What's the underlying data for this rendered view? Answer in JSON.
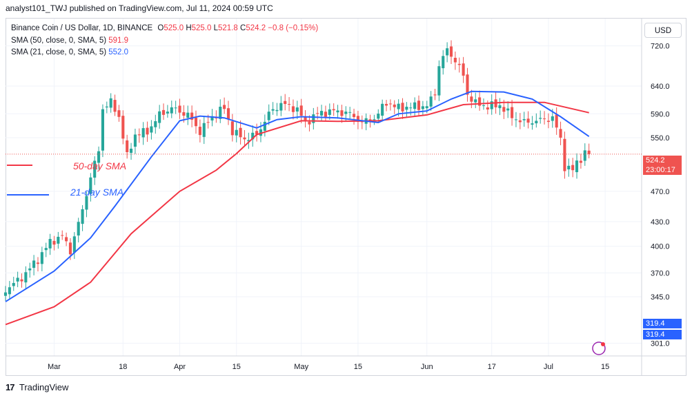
{
  "header": {
    "text": "analyst101_TWJ published on TradingView.com, Jul 11, 2024 00:59 UTC"
  },
  "legend": {
    "symbol": "Binance Coin / US Dollar, 1D, BINANCE",
    "o_label": "O",
    "o_value": "525.0",
    "h_label": "H",
    "h_value": "525.0",
    "l_label": "L",
    "l_value": "521.8",
    "c_label": "C",
    "c_value": "524.2",
    "change": "−0.8 (−0.15%)",
    "sma50_label": "SMA (50, close, 0, SMA, 5)",
    "sma50_value": "591.9",
    "sma21_label": "SMA (21, close, 0, SMA, 5)",
    "sma21_value": "552.0"
  },
  "currency_button": "USD",
  "price_tags": {
    "last_price": "524.2",
    "countdown": "23:00:17",
    "lower_1": "319.4",
    "lower_2": "319.4"
  },
  "annotations": {
    "sma50": "50-day SMA",
    "sma21": "21-day SMA"
  },
  "branding": {
    "logo": "17",
    "name": "TradingView"
  },
  "colors": {
    "up": "#26a69a",
    "down": "#ef5350",
    "sma50": "#f23645",
    "sma21": "#2962ff",
    "grid": "#f0f3fa",
    "last_line": "#ef5350"
  },
  "chart_data": {
    "type": "candlestick",
    "title": "Binance Coin / US Dollar, 1D, BINANCE",
    "y_scale": "log",
    "ylim": [
      290,
      780
    ],
    "y_ticks": [
      301.0,
      345.0,
      370.0,
      400.0,
      430.0,
      470.0,
      550.0,
      590.0,
      640.0,
      720.0
    ],
    "x_range": [
      "2024-02-18",
      "2024-07-24"
    ],
    "x_ticks": [
      {
        "date": "2024-03-01",
        "label": "Mar"
      },
      {
        "date": "2024-03-18",
        "label": "18"
      },
      {
        "date": "2024-04-01",
        "label": "Apr"
      },
      {
        "date": "2024-04-15",
        "label": "15"
      },
      {
        "date": "2024-05-01",
        "label": "May"
      },
      {
        "date": "2024-05-15",
        "label": "15"
      },
      {
        "date": "2024-06-01",
        "label": "Jun"
      },
      {
        "date": "2024-06-17",
        "label": "17"
      },
      {
        "date": "2024-07-01",
        "label": "Jul"
      },
      {
        "date": "2024-07-15",
        "label": "15"
      }
    ],
    "last_price": 524.2,
    "close_anchors": [
      [
        "2024-02-18",
        352
      ],
      [
        "2024-02-22",
        365
      ],
      [
        "2024-02-26",
        385
      ],
      [
        "2024-02-29",
        405
      ],
      [
        "2024-03-03",
        412
      ],
      [
        "2024-03-05",
        395
      ],
      [
        "2024-03-08",
        445
      ],
      [
        "2024-03-10",
        490
      ],
      [
        "2024-03-12",
        530
      ],
      [
        "2024-03-13",
        600
      ],
      [
        "2024-03-15",
        610
      ],
      [
        "2024-03-17",
        585
      ],
      [
        "2024-03-19",
        520
      ],
      [
        "2024-03-21",
        555
      ],
      [
        "2024-03-24",
        560
      ],
      [
        "2024-03-27",
        588
      ],
      [
        "2024-03-30",
        600
      ],
      [
        "2024-04-03",
        588
      ],
      [
        "2024-04-06",
        560
      ],
      [
        "2024-04-09",
        585
      ],
      [
        "2024-04-12",
        600
      ],
      [
        "2024-04-14",
        560
      ],
      [
        "2024-04-17",
        548
      ],
      [
        "2024-04-20",
        555
      ],
      [
        "2024-04-23",
        590
      ],
      [
        "2024-04-26",
        608
      ],
      [
        "2024-04-30",
        598
      ],
      [
        "2024-05-02",
        575
      ],
      [
        "2024-05-05",
        590
      ],
      [
        "2024-05-09",
        595
      ],
      [
        "2024-05-13",
        590
      ],
      [
        "2024-05-16",
        575
      ],
      [
        "2024-05-19",
        582
      ],
      [
        "2024-05-22",
        610
      ],
      [
        "2024-05-25",
        600
      ],
      [
        "2024-05-29",
        603
      ],
      [
        "2024-06-01",
        603
      ],
      [
        "2024-06-03",
        628
      ],
      [
        "2024-06-04",
        680
      ],
      [
        "2024-06-06",
        712
      ],
      [
        "2024-06-08",
        690
      ],
      [
        "2024-06-10",
        660
      ],
      [
        "2024-06-11",
        625
      ],
      [
        "2024-06-13",
        608
      ],
      [
        "2024-06-16",
        603
      ],
      [
        "2024-06-19",
        605
      ],
      [
        "2024-06-22",
        585
      ],
      [
        "2024-06-25",
        575
      ],
      [
        "2024-06-28",
        578
      ],
      [
        "2024-07-02",
        583
      ],
      [
        "2024-07-04",
        548
      ],
      [
        "2024-07-05",
        505
      ],
      [
        "2024-07-07",
        500
      ],
      [
        "2024-07-08",
        512
      ],
      [
        "2024-07-09",
        518
      ],
      [
        "2024-07-10",
        525.0
      ],
      [
        "2024-07-11",
        524.2
      ]
    ],
    "sma50_points": [
      [
        "2024-02-18",
        318
      ],
      [
        "2024-03-01",
        335
      ],
      [
        "2024-03-10",
        360
      ],
      [
        "2024-03-20",
        415
      ],
      [
        "2024-04-01",
        470
      ],
      [
        "2024-04-10",
        500
      ],
      [
        "2024-04-15",
        525
      ],
      [
        "2024-04-20",
        555
      ],
      [
        "2024-05-01",
        578
      ],
      [
        "2024-05-10",
        577
      ],
      [
        "2024-05-20",
        578
      ],
      [
        "2024-06-01",
        588
      ],
      [
        "2024-06-10",
        606
      ],
      [
        "2024-06-20",
        610
      ],
      [
        "2024-06-30",
        610
      ],
      [
        "2024-07-11",
        591.9
      ]
    ],
    "sma21_points": [
      [
        "2024-02-18",
        340
      ],
      [
        "2024-03-01",
        372
      ],
      [
        "2024-03-10",
        410
      ],
      [
        "2024-03-16",
        450
      ],
      [
        "2024-03-25",
        520
      ],
      [
        "2024-04-01",
        578
      ],
      [
        "2024-04-06",
        586
      ],
      [
        "2024-04-12",
        583
      ],
      [
        "2024-04-20",
        566
      ],
      [
        "2024-04-25",
        580
      ],
      [
        "2024-05-01",
        585
      ],
      [
        "2024-05-10",
        583
      ],
      [
        "2024-05-20",
        575
      ],
      [
        "2024-05-25",
        590
      ],
      [
        "2024-06-01",
        595
      ],
      [
        "2024-06-07",
        616
      ],
      [
        "2024-06-12",
        630
      ],
      [
        "2024-06-20",
        629
      ],
      [
        "2024-06-27",
        616
      ],
      [
        "2024-07-04",
        585
      ],
      [
        "2024-07-11",
        552.0
      ]
    ]
  }
}
